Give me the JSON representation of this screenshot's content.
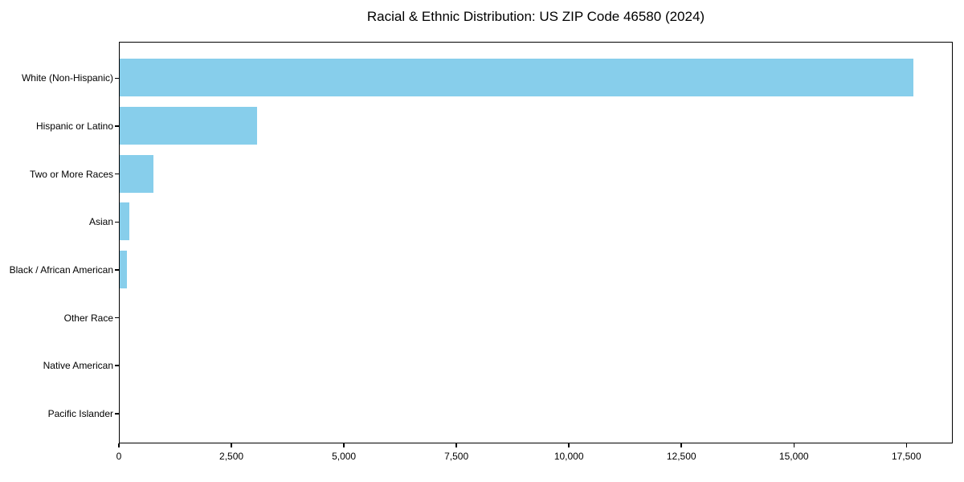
{
  "chart_data": {
    "type": "bar",
    "orientation": "horizontal",
    "title": "Racial & Ethnic Distribution: US ZIP Code 46580 (2024)",
    "categories": [
      "White (Non-Hispanic)",
      "Hispanic or Latino",
      "Two or More Races",
      "Asian",
      "Black / African American",
      "Other Race",
      "Native American",
      "Pacific Islander"
    ],
    "values": [
      17640,
      3050,
      755,
      220,
      160,
      0,
      0,
      0
    ],
    "xlabel": "",
    "ylabel": "",
    "xlim": [
      0,
      18530
    ],
    "x_ticks": [
      0,
      2500,
      5000,
      7500,
      10000,
      12500,
      15000,
      17500
    ],
    "x_tick_labels": [
      "0",
      "2,500",
      "5,000",
      "7,500",
      "10,000",
      "12,500",
      "15,000",
      "17,500"
    ],
    "bar_color": "#87CEEB",
    "background_color": "#ffffff",
    "spine_color": "#000000",
    "grid": false,
    "legend": null
  }
}
